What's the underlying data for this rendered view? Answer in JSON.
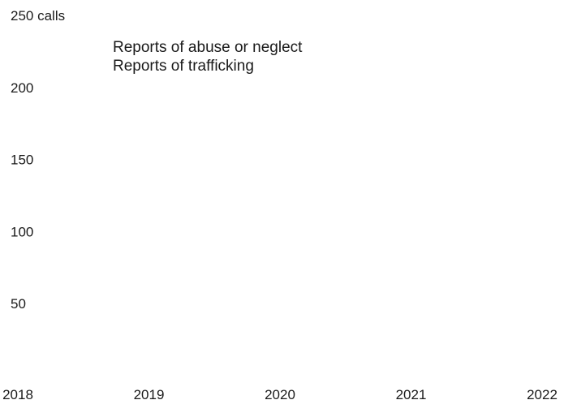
{
  "chart_data": {
    "type": "line",
    "title": "",
    "xlabel": "",
    "ylabel": "",
    "x_ticks": [
      "2018",
      "2019",
      "2020",
      "2021",
      "2022"
    ],
    "y_ticks": [
      "250 calls",
      "200",
      "150",
      "100",
      "50"
    ],
    "y_tick_values": [
      250,
      200,
      150,
      100,
      50
    ],
    "xlim": [
      2018,
      2022
    ],
    "ylim": [
      0,
      250
    ],
    "grid": false,
    "legend_position": "top-left",
    "series": [
      {
        "name": "Reports of abuse or neglect",
        "values": []
      },
      {
        "name": "Reports of trafficking",
        "values": []
      }
    ]
  }
}
